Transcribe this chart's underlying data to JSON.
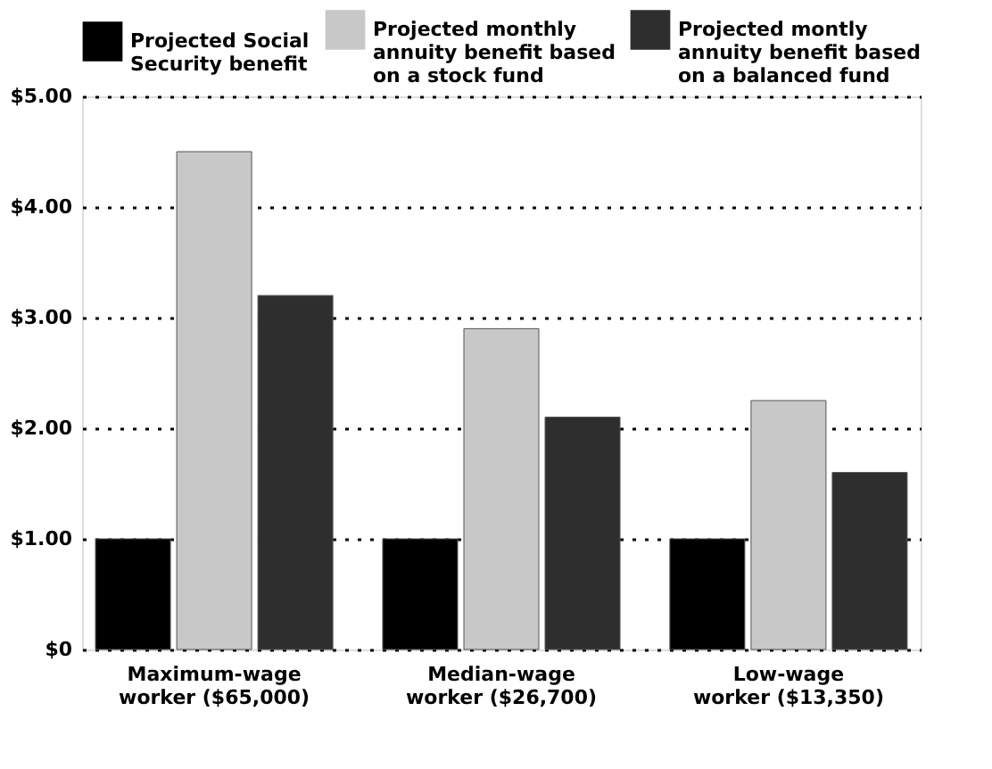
{
  "chart_data": {
    "type": "bar",
    "categories": [
      "Maximum-wage\nworker ($65,000)",
      "Median-wage\nworker ($26,700)",
      "Low-wage\nworker ($13,350)"
    ],
    "series": [
      {
        "name": "Projected Social\nSecurity benefit",
        "color": "#000000",
        "values": [
          1.0,
          1.0,
          1.0
        ]
      },
      {
        "name": "Projected monthly\nannuity benefit based\non a stock fund",
        "color": "#c8c8c8",
        "values": [
          4.5,
          2.9,
          2.25
        ]
      },
      {
        "name": "Projected montly\nannuity benefit based\non a balanced fund",
        "color": "#2e2e2e",
        "values": [
          3.2,
          2.1,
          1.6
        ]
      }
    ],
    "ylim": [
      0,
      5
    ],
    "yticks": [
      {
        "value": 0,
        "label": "$0"
      },
      {
        "value": 1,
        "label": "$1.00"
      },
      {
        "value": 2,
        "label": "$2.00"
      },
      {
        "value": 3,
        "label": "$3.00"
      },
      {
        "value": 4,
        "label": "$4.00"
      },
      {
        "value": 5,
        "label": "$5.00"
      }
    ],
    "grid": "y",
    "legend": "top"
  }
}
